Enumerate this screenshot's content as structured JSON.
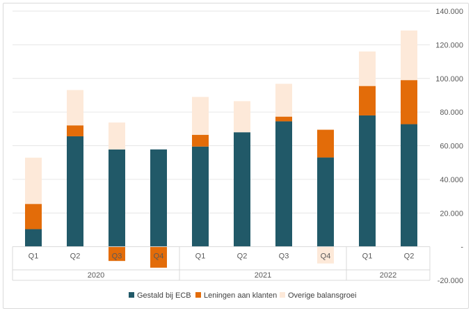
{
  "chart_data": {
    "type": "bar",
    "stacked": true,
    "categories": [
      "Q1",
      "Q2",
      "Q3",
      "Q4",
      "Q1",
      "Q2",
      "Q3",
      "Q4",
      "Q1",
      "Q2"
    ],
    "years": [
      {
        "label": "2020",
        "quarters": 4
      },
      {
        "label": "2021",
        "quarters": 4
      },
      {
        "label": "2022",
        "quarters": 2
      }
    ],
    "series": [
      {
        "name": "Gestald bij ECB",
        "color": "#215968",
        "values": [
          10400,
          65600,
          57800,
          57800,
          59500,
          68000,
          74500,
          53000,
          78000,
          72800
        ]
      },
      {
        "name": "Leningen aan klanten",
        "color": "#E36C09",
        "values": [
          15000,
          6500,
          -8500,
          -12500,
          7000,
          0,
          2800,
          16500,
          17500,
          26200
        ]
      },
      {
        "name": "Overige balansgroei",
        "color": "#FDE9D9",
        "values": [
          27500,
          21000,
          16000,
          0,
          22500,
          18500,
          19500,
          -10000,
          20500,
          29500
        ]
      }
    ],
    "y_axis": {
      "position": "right",
      "ylim": [
        -20000,
        140000
      ],
      "ticks": [
        -20000,
        0,
        20000,
        40000,
        60000,
        80000,
        100000,
        120000,
        140000
      ],
      "tick_labels": [
        "-20.000",
        "-",
        "20.000",
        "40.000",
        "60.000",
        "80.000",
        "100.000",
        "120.000",
        "140.000"
      ]
    },
    "grid": true,
    "legend_position": "bottom"
  }
}
